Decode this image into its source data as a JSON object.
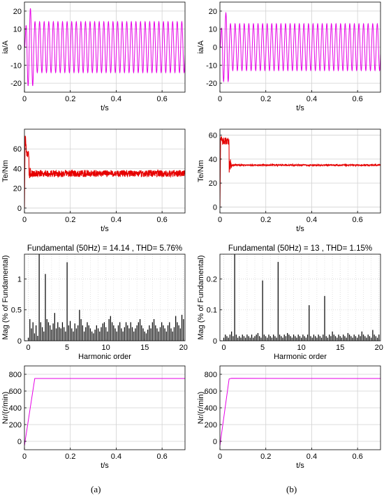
{
  "figure": {
    "labels": [
      "(a)",
      "(b)"
    ]
  },
  "colors": {
    "current": "#e600e6",
    "torque": "#e60000",
    "bars": "#000000",
    "speed": "#e600e6",
    "grid": "#d2d2d2",
    "axes": "#000000"
  },
  "chart_data": [
    {
      "id": "a-current",
      "type": "line",
      "ylabel": "ia/A",
      "xlabel": "t/s",
      "xlim": [
        0,
        0.7
      ],
      "ylim": [
        -25,
        25
      ],
      "xticks": [
        0,
        0.2,
        0.4,
        0.6
      ],
      "xtick_labels": [
        "0",
        "0.2",
        "0.4",
        "0.6"
      ],
      "yticks": [
        -20,
        -10,
        0,
        10,
        20
      ],
      "ytick_labels": [
        "-20",
        "-10",
        "0",
        "10",
        "20"
      ],
      "grid": true,
      "series": [
        {
          "kind": "sine",
          "freq_hz": 50,
          "steady_amplitude": 14.14,
          "peak_transient": 21.5,
          "transient_end_s": 0.04
        }
      ]
    },
    {
      "id": "b-current",
      "type": "line",
      "ylabel": "ia/A",
      "xlabel": "t/s",
      "xlim": [
        0,
        0.7
      ],
      "ylim": [
        -25,
        25
      ],
      "xticks": [
        0,
        0.2,
        0.4,
        0.6
      ],
      "xtick_labels": [
        "0",
        "0.2",
        "0.4",
        "0.6"
      ],
      "yticks": [
        -20,
        -10,
        0,
        10,
        20
      ],
      "ytick_labels": [
        "-20",
        "-10",
        "0",
        "10",
        "20"
      ],
      "grid": true,
      "series": [
        {
          "kind": "sine",
          "freq_hz": 50,
          "steady_amplitude": 13,
          "peak_transient": 19,
          "transient_end_s": 0.04
        }
      ]
    },
    {
      "id": "a-torque",
      "type": "line",
      "ylabel": "Te/Nm",
      "xlabel": "t/s",
      "xlim": [
        0,
        0.7
      ],
      "ylim": [
        -5,
        80
      ],
      "xticks": [
        0,
        0.2,
        0.4,
        0.6
      ],
      "xtick_labels": [
        "0",
        "0.2",
        "0.4",
        "0.6"
      ],
      "yticks": [
        0,
        20,
        40,
        60
      ],
      "ytick_labels": [
        "0",
        "20",
        "40",
        "60"
      ],
      "grid": true,
      "series": [
        {
          "kind": "torque",
          "start_peak": 75,
          "startup_level": 55,
          "startup_end_s": 0.02,
          "steady": 35,
          "ripple": 3.5
        }
      ]
    },
    {
      "id": "b-torque",
      "type": "line",
      "ylabel": "Te/Nm",
      "xlabel": "t/s",
      "xlim": [
        0,
        0.7
      ],
      "ylim": [
        -5,
        65
      ],
      "xticks": [
        0,
        0.2,
        0.4,
        0.6
      ],
      "xtick_labels": [
        "0",
        "0.2",
        "0.4",
        "0.6"
      ],
      "yticks": [
        0,
        20,
        40,
        60
      ],
      "ytick_labels": [
        "0",
        "20",
        "40",
        "60"
      ],
      "grid": true,
      "series": [
        {
          "kind": "torque",
          "start_peak": 59,
          "startup_level": 55,
          "startup_end_s": 0.04,
          "steady": 35,
          "ripple": 0.6
        }
      ]
    },
    {
      "id": "a-fft",
      "type": "bar",
      "title": "Fundamental (50Hz) = 14.14 , THD= 5.76%",
      "ylabel": "Mag (% of Fundamental)",
      "xlabel": "Harmonic order",
      "xlim": [
        -0.5,
        20.2
      ],
      "ylim": [
        0,
        1.4
      ],
      "xticks": [
        0,
        5,
        10,
        15,
        20
      ],
      "xtick_labels": [
        "0",
        "5",
        "10",
        "15",
        "20"
      ],
      "yticks": [
        0,
        0.5,
        1
      ],
      "ytick_labels": [
        "0",
        "0.5",
        "1"
      ],
      "grid": true,
      "bar_step": 0.2,
      "values": [
        0.05,
        0.35,
        0.2,
        0.3,
        0.12,
        0.25,
        0.08,
        1.4,
        0.3,
        0.22,
        0.15,
        1.08,
        0.35,
        0.3,
        0.25,
        0.18,
        0.28,
        0.45,
        0.2,
        0.3,
        0.22,
        0.2,
        0.3,
        0.22,
        0.15,
        1.27,
        0.25,
        0.32,
        0.2,
        0.15,
        0.28,
        0.2,
        0.25,
        0.5,
        0.35,
        0.25,
        0.15,
        0.22,
        0.3,
        0.25,
        0.2,
        0.15,
        0.12,
        0.18,
        0.25,
        0.2,
        0.15,
        0.22,
        0.28,
        0.3,
        0.22,
        0.15,
        0.35,
        0.4,
        0.3,
        0.25,
        0.2,
        0.15,
        0.25,
        0.3,
        0.2,
        0.15,
        0.22,
        0.3,
        0.25,
        0.2,
        0.3,
        0.22,
        0.15,
        0.2,
        0.25,
        0.3,
        0.35,
        0.25,
        0.2,
        0.15,
        0.12,
        0.18,
        0.25,
        0.2,
        0.3,
        0.35,
        0.25,
        0.2,
        0.15,
        0.22,
        0.3,
        0.25,
        0.2,
        0.15,
        0.25,
        0.3,
        0.2,
        0.15,
        0.22,
        0.4,
        0.3,
        0.25,
        0.2,
        0.42,
        0.35
      ]
    },
    {
      "id": "b-fft",
      "type": "bar",
      "title": "Fundamental (50Hz) = 13 , THD= 1.15%",
      "ylabel": "Mag (% of Fundamental)",
      "xlabel": "Harmonic order",
      "xlim": [
        -0.5,
        20.2
      ],
      "ylim": [
        0,
        0.28
      ],
      "xticks": [
        0,
        5,
        10,
        15,
        20
      ],
      "xtick_labels": [
        "0",
        "5",
        "10",
        "15",
        "20"
      ],
      "yticks": [
        0,
        0.1,
        0.2
      ],
      "ytick_labels": [
        "0",
        "0.1",
        "0.2"
      ],
      "grid": true,
      "bar_step": 0.2,
      "values": [
        0.01,
        0.02,
        0.015,
        0.01,
        0.02,
        0.03,
        0.015,
        0.28,
        0.02,
        0.01,
        0.015,
        0.01,
        0.02,
        0.015,
        0.01,
        0.02,
        0.015,
        0.01,
        0.02,
        0.01,
        0.015,
        0.02,
        0.025,
        0.015,
        0.01,
        0.195,
        0.02,
        0.015,
        0.01,
        0.02,
        0.015,
        0.01,
        0.02,
        0.015,
        0.01,
        0.255,
        0.02,
        0.015,
        0.01,
        0.02,
        0.015,
        0.025,
        0.02,
        0.015,
        0.01,
        0.02,
        0.015,
        0.01,
        0.02,
        0.015,
        0.01,
        0.02,
        0.015,
        0.01,
        0.02,
        0.115,
        0.015,
        0.01,
        0.02,
        0.015,
        0.01,
        0.02,
        0.015,
        0.01,
        0.02,
        0.145,
        0.015,
        0.01,
        0.02,
        0.015,
        0.03,
        0.02,
        0.015,
        0.01,
        0.02,
        0.015,
        0.01,
        0.02,
        0.015,
        0.01,
        0.025,
        0.02,
        0.015,
        0.01,
        0.02,
        0.015,
        0.01,
        0.02,
        0.015,
        0.03,
        0.02,
        0.015,
        0.01,
        0.02,
        0.015,
        0.01,
        0.035,
        0.02,
        0.015,
        0.01,
        0.02
      ]
    },
    {
      "id": "a-speed",
      "type": "line",
      "ylabel": "Nr/(r/min)",
      "xlabel": "t/s",
      "xlim": [
        0,
        0.7
      ],
      "ylim": [
        -100,
        900
      ],
      "xticks": [
        0,
        0.2,
        0.4,
        0.6
      ],
      "xtick_labels": [
        "0",
        "0.2",
        "0.4",
        "0.6"
      ],
      "yticks": [
        0,
        200,
        400,
        600,
        800
      ],
      "ytick_labels": [
        "0",
        "200",
        "400",
        "600",
        "800"
      ],
      "grid": true,
      "series": [
        {
          "kind": "points",
          "x": [
            0,
            0.045,
            0.7
          ],
          "y": [
            -50,
            750,
            750
          ]
        }
      ]
    },
    {
      "id": "b-speed",
      "type": "line",
      "ylabel": "Nr/(r/min)",
      "xlabel": "t/s",
      "xlim": [
        0,
        0.7
      ],
      "ylim": [
        -100,
        900
      ],
      "xticks": [
        0,
        0.2,
        0.4,
        0.6
      ],
      "xtick_labels": [
        "0",
        "0.2",
        "0.4",
        "0.6"
      ],
      "yticks": [
        0,
        200,
        400,
        600,
        800
      ],
      "ytick_labels": [
        "0",
        "200",
        "400",
        "600",
        "800"
      ],
      "grid": true,
      "series": [
        {
          "kind": "points",
          "x": [
            0,
            0.04,
            0.05,
            0.7
          ],
          "y": [
            -50,
            745,
            752,
            750
          ]
        }
      ]
    }
  ]
}
